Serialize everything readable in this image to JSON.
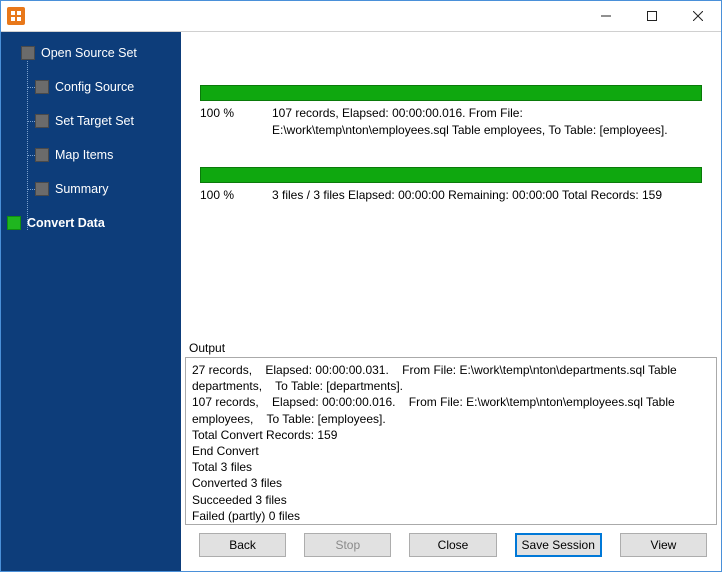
{
  "colors": {
    "window_border": "#4a90d9",
    "sidebar_bg": "#0d3d7a",
    "progress_green": "#0fa80f",
    "active_step_green": "#1fb61f",
    "primary_button_border": "#0078d7",
    "app_icon_bg": "#e8781a"
  },
  "steps": [
    {
      "label": "Open Source Set",
      "child": false,
      "active": false
    },
    {
      "label": "Config Source",
      "child": true,
      "active": false
    },
    {
      "label": "Set Target Set",
      "child": true,
      "active": false
    },
    {
      "label": "Map Items",
      "child": true,
      "active": false
    },
    {
      "label": "Summary",
      "child": true,
      "active": false
    },
    {
      "label": "Convert Data",
      "child": false,
      "active": true
    }
  ],
  "progress1": {
    "percent_label": "100 %",
    "line1": "107 records,    Elapsed: 00:00:00.016.    From File: E:\\work\\temp\\nton\\employees.sql Table employees,    To Table: [employees]."
  },
  "progress2": {
    "percent_label": "100 %",
    "line1": "3 files / 3 files    Elapsed: 00:00:00    Remaining: 00:00:00    Total Records: 159"
  },
  "output_label": "Output",
  "output_text": "27 records,    Elapsed: 00:00:00.031.    From File: E:\\work\\temp\\nton\\departments.sql Table departments,    To Table: [departments].\n107 records,    Elapsed: 00:00:00.016.    From File: E:\\work\\temp\\nton\\employees.sql Table employees,    To Table: [employees].\nTotal Convert Records: 159\nEnd Convert\nTotal 3 files\nConverted 3 files\nSucceeded 3 files\nFailed (partly) 0 files",
  "buttons": {
    "back": "Back",
    "stop": "Stop",
    "close": "Close",
    "save_session": "Save Session",
    "view": "View"
  }
}
